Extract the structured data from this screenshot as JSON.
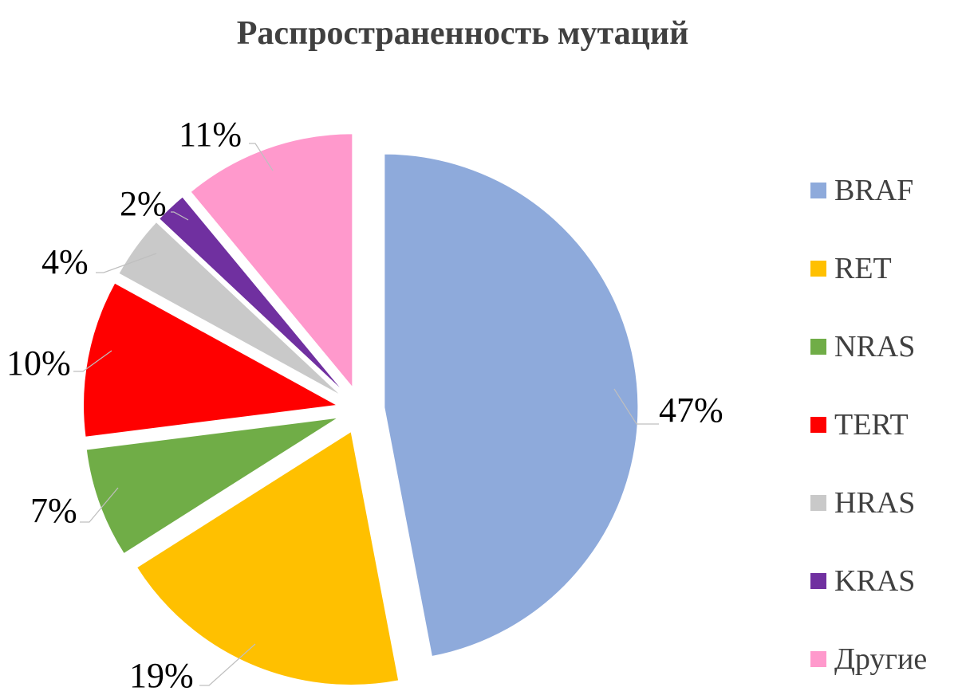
{
  "chart_data": {
    "type": "pie",
    "title": "Распространенность мутаций",
    "categories": [
      "BRAF",
      "RET",
      "NRAS",
      "TERT",
      "HRAS",
      "KRAS",
      "Другие"
    ],
    "values": [
      47,
      19,
      7,
      10,
      4,
      2,
      11
    ],
    "labels": [
      "47%",
      "19%",
      "7%",
      "10%",
      "4%",
      "2%",
      "11%"
    ],
    "colors": [
      "#8eaadb",
      "#ffc000",
      "#70ad47",
      "#ff0000",
      "#c9c9c9",
      "#7030a0",
      "#ff99cc"
    ],
    "legend_position": "right",
    "exploded": true
  }
}
